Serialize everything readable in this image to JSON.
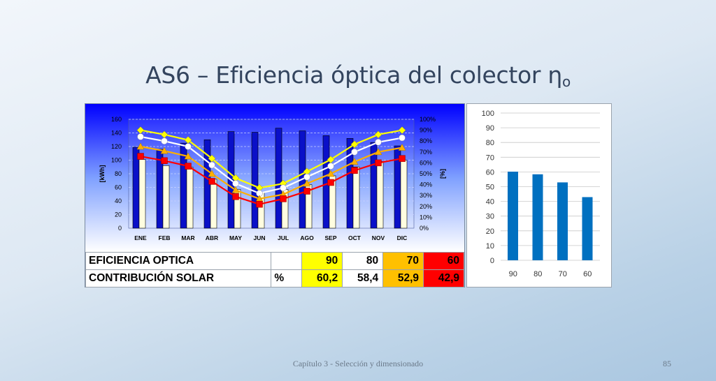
{
  "slide": {
    "title_main": "AS6 – Eficiencia óptica del colector η",
    "title_sub": "o",
    "footer": "Capítulo 3 - Selección y dimensionado",
    "page_number": "85"
  },
  "table": {
    "rows": [
      {
        "label": "EFICIENCIA OPTICA",
        "unit": "",
        "values": [
          "90",
          "80",
          "70",
          "60"
        ]
      },
      {
        "label": "CONTRIBUCIÓN SOLAR",
        "unit": "%",
        "values": [
          "60,2",
          "58,4",
          "52,9",
          "42,9"
        ]
      }
    ],
    "colors": [
      "#ffff00",
      "#ffffff",
      "#ffc000",
      "#ff0000"
    ]
  },
  "chart_data": [
    {
      "type": "bar",
      "categories": [
        "ENE",
        "FEB",
        "MAR",
        "ABR",
        "MAY",
        "JUN",
        "JUL",
        "AGO",
        "SEP",
        "OCT",
        "NOV",
        "DIC"
      ],
      "ylabel": "[kWh]",
      "ylim": [
        0,
        160
      ],
      "yticks": [
        "0",
        "20",
        "40",
        "60",
        "80",
        "100",
        "120",
        "140",
        "160"
      ],
      "y2label": "[%]",
      "y2lim": [
        0,
        100
      ],
      "y2ticks": [
        "0%",
        "10%",
        "20%",
        "30%",
        "40%",
        "50%",
        "60%",
        "70%",
        "80%",
        "90%",
        "100%"
      ],
      "grid": true,
      "bar_series": [
        {
          "color": "#0a10c8",
          "values": [
            119,
            116,
            125,
            130,
            142,
            141,
            147,
            143,
            136,
            132,
            126,
            121
          ]
        },
        {
          "color": "#fffde0",
          "values": [
            101,
            92,
            90,
            72,
            57,
            52,
            57,
            64,
            77,
            90,
            98,
            100
          ]
        }
      ],
      "line_series": [
        {
          "color": "#ffff00",
          "values": [
            90,
            86,
            81,
            64,
            46,
            37,
            41,
            52,
            63,
            77,
            86,
            90
          ]
        },
        {
          "color": "#ffffff",
          "values": [
            84,
            80,
            75,
            58,
            41,
            32,
            37,
            47,
            57,
            70,
            79,
            83
          ]
        },
        {
          "color": "#ffb000",
          "values": [
            75,
            71,
            66,
            50,
            35,
            27,
            31,
            41,
            50,
            61,
            70,
            74
          ]
        },
        {
          "color": "#ff0000",
          "values": [
            66,
            62,
            57,
            43,
            29,
            22,
            27,
            34,
            42,
            53,
            60,
            64
          ]
        }
      ],
      "background": "#0000ff"
    },
    {
      "type": "bar",
      "categories": [
        "90",
        "80",
        "70",
        "60"
      ],
      "values": [
        60.2,
        58.4,
        52.9,
        42.9
      ],
      "ylim": [
        0,
        100
      ],
      "yticks": [
        "0",
        "10",
        "20",
        "30",
        "40",
        "50",
        "60",
        "70",
        "80",
        "90",
        "100"
      ],
      "color": "#0070c0",
      "grid": true
    }
  ]
}
